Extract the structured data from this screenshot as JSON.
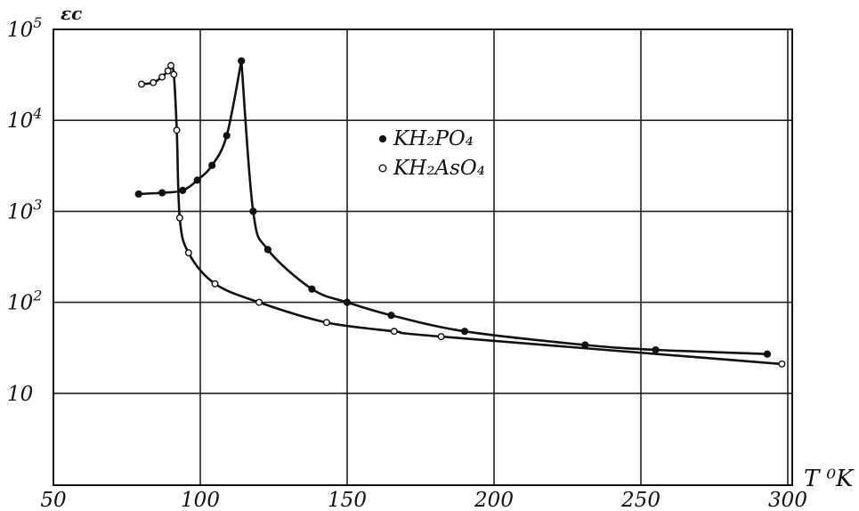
{
  "chart_data": {
    "type": "scatter",
    "title": "",
    "ylabel": "εc",
    "xlabel": "T ⁰K",
    "x_ticks": [
      {
        "label": "50",
        "value": 50
      },
      {
        "label": "100",
        "value": 100
      },
      {
        "label": "150",
        "value": 150
      },
      {
        "label": "200",
        "value": 200
      },
      {
        "label": "250",
        "value": 250
      },
      {
        "label": "300",
        "value": 300
      }
    ],
    "y_ticks": [
      {
        "base": "10",
        "exp": "5",
        "value": 100000
      },
      {
        "base": "10",
        "exp": "4",
        "value": 10000
      },
      {
        "base": "10",
        "exp": "3",
        "value": 1000
      },
      {
        "base": "10",
        "exp": "2",
        "value": 100
      },
      {
        "base": "10",
        "exp": "",
        "value": 10
      }
    ],
    "xlim": [
      50,
      300
    ],
    "ylim": [
      1,
      100000
    ],
    "yscale": "log",
    "grid": true,
    "legend_position": "center",
    "series": [
      {
        "name": "KH₂PO₄",
        "marker": "filled-circle",
        "points": [
          [
            79,
            1550
          ],
          [
            87,
            1600
          ],
          [
            94,
            1700
          ],
          [
            99,
            2200
          ],
          [
            104,
            3200
          ],
          [
            109,
            6800
          ],
          [
            114,
            45000
          ],
          [
            118,
            1000
          ],
          [
            123,
            380
          ],
          [
            138,
            140
          ],
          [
            150,
            100
          ],
          [
            165,
            72
          ],
          [
            190,
            48
          ],
          [
            231,
            34
          ],
          [
            255,
            30
          ],
          [
            293,
            27
          ]
        ]
      },
      {
        "name": "KH₂AsO₄",
        "marker": "open-circle",
        "points": [
          [
            80,
            25000
          ],
          [
            84,
            26000
          ],
          [
            87,
            30000
          ],
          [
            89,
            35000
          ],
          [
            90,
            40000
          ],
          [
            91,
            32000
          ],
          [
            92,
            7800
          ],
          [
            93,
            850
          ],
          [
            96,
            350
          ],
          [
            105,
            160
          ],
          [
            120,
            100
          ],
          [
            143,
            60
          ],
          [
            166,
            48
          ],
          [
            182,
            42
          ],
          [
            298,
            21
          ]
        ]
      }
    ]
  }
}
